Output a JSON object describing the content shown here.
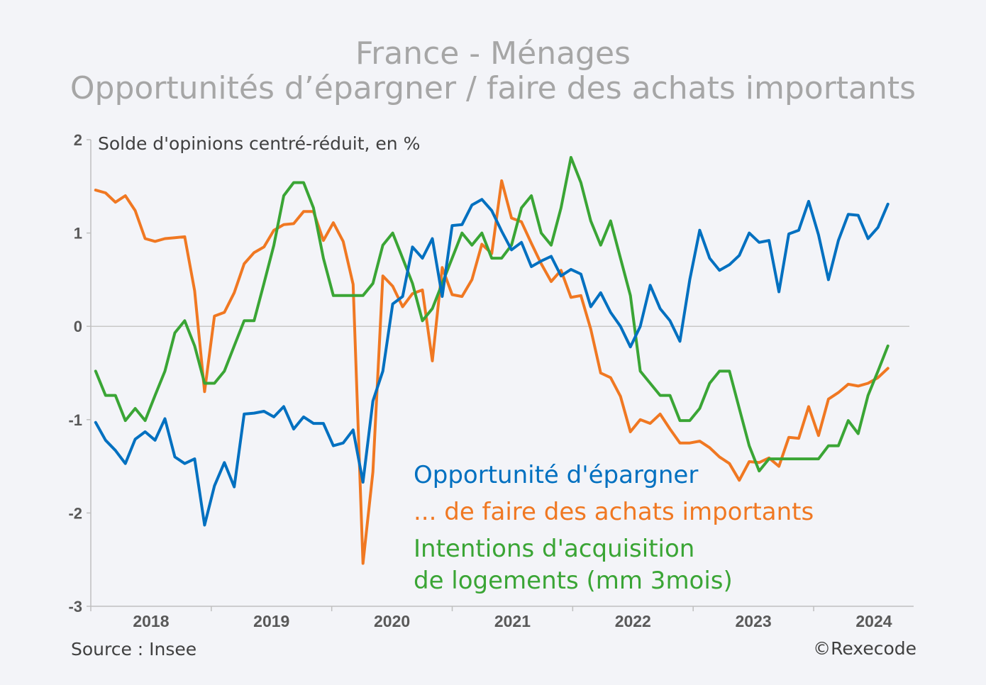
{
  "chart_data": {
    "type": "line",
    "title": "France - Ménages",
    "subtitle": "Opportunités d’épargner / faire des achats importants",
    "ylabel": "Solde d'opinions centré-réduit, en %",
    "ylim": [
      -3,
      2
    ],
    "yticks": [
      "2",
      "1",
      "0",
      "-1",
      "-2",
      "-3"
    ],
    "xlim": [
      2017.5,
      2024.33
    ],
    "xticks": [
      {
        "label": "2018",
        "value": 2018.0
      },
      {
        "label": "2019",
        "value": 2019.0
      },
      {
        "label": "2020",
        "value": 2020.0
      },
      {
        "label": "2021",
        "value": 2021.0
      },
      {
        "label": "2022",
        "value": 2022.0
      },
      {
        "label": "2023",
        "value": 2023.0
      },
      {
        "label": "2024",
        "value": 2024.0
      }
    ],
    "start": 2017.54,
    "step": 0.0822,
    "series": [
      {
        "name": "Opportunité d'épargner",
        "color": "#0070c0",
        "values": [
          -1.03,
          -1.22,
          -1.33,
          -1.47,
          -1.21,
          -1.13,
          -1.22,
          -0.99,
          -1.4,
          -1.47,
          -1.42,
          -2.13,
          -1.71,
          -1.46,
          -1.72,
          -0.94,
          -0.93,
          -0.91,
          -0.97,
          -0.86,
          -1.1,
          -0.97,
          -1.04,
          -1.04,
          -1.28,
          -1.25,
          -1.11,
          -1.67,
          -0.8,
          -0.48,
          0.24,
          0.32,
          0.85,
          0.73,
          0.94,
          0.32,
          1.08,
          1.09,
          1.3,
          1.36,
          1.24,
          1.02,
          0.82,
          0.9,
          0.64,
          0.7,
          0.75,
          0.54,
          0.61,
          0.56,
          0.21,
          0.36,
          0.15,
          0.0,
          -0.22,
          0.0,
          0.44,
          0.19,
          0.06,
          -0.16,
          0.5,
          1.03,
          0.73,
          0.6,
          0.66,
          0.76,
          1.0,
          0.9,
          0.92,
          0.37,
          0.99,
          1.03,
          1.34,
          0.98,
          0.5,
          0.92,
          1.2,
          1.19,
          0.94,
          1.06,
          1.31
        ]
      },
      {
        "name": "... de faire des achats importants",
        "color": "#f07822",
        "values": [
          1.46,
          1.43,
          1.33,
          1.4,
          1.24,
          0.94,
          0.91,
          0.94,
          0.95,
          0.96,
          0.38,
          -0.7,
          0.11,
          0.15,
          0.36,
          0.67,
          0.79,
          0.85,
          1.03,
          1.09,
          1.1,
          1.23,
          1.23,
          0.92,
          1.11,
          0.91,
          0.45,
          -2.54,
          -1.56,
          0.54,
          0.43,
          0.21,
          0.35,
          0.39,
          -0.37,
          0.63,
          0.34,
          0.32,
          0.5,
          0.88,
          0.78,
          1.56,
          1.16,
          1.12,
          0.89,
          0.67,
          0.48,
          0.6,
          0.31,
          0.33,
          -0.03,
          -0.5,
          -0.55,
          -0.75,
          -1.13,
          -1.0,
          -1.04,
          -0.94,
          -1.1,
          -1.25,
          -1.25,
          -1.23,
          -1.3,
          -1.4,
          -1.47,
          -1.65,
          -1.45,
          -1.46,
          -1.41,
          -1.5,
          -1.19,
          -1.2,
          -0.86,
          -1.17,
          -0.78,
          -0.71,
          -0.62,
          -0.64,
          -0.61,
          -0.55,
          -0.45
        ]
      },
      {
        "name": "Intentions d'acquisition de logements (mm 3mois)",
        "color": "#3aa535",
        "values": [
          -0.48,
          -0.74,
          -0.74,
          -1.01,
          -0.88,
          -1.01,
          -0.74,
          -0.48,
          -0.07,
          0.06,
          -0.21,
          -0.61,
          -0.61,
          -0.48,
          -0.21,
          0.06,
          0.06,
          0.46,
          0.87,
          1.4,
          1.54,
          1.54,
          1.27,
          0.73,
          0.33,
          0.33,
          0.33,
          0.33,
          0.46,
          0.87,
          1.0,
          0.73,
          0.46,
          0.06,
          0.19,
          0.46,
          0.73,
          1.0,
          0.87,
          1.0,
          0.73,
          0.73,
          0.87,
          1.27,
          1.4,
          1.0,
          0.87,
          1.27,
          1.81,
          1.54,
          1.13,
          0.87,
          1.13,
          0.73,
          0.33,
          -0.48,
          -0.61,
          -0.74,
          -0.74,
          -1.01,
          -1.01,
          -0.88,
          -0.61,
          -0.48,
          -0.48,
          -0.88,
          -1.28,
          -1.55,
          -1.42,
          -1.42,
          -1.42,
          -1.42,
          -1.42,
          -1.42,
          -1.28,
          -1.28,
          -1.01,
          -1.15,
          -0.74,
          -0.48,
          -0.21
        ]
      }
    ],
    "legend": {
      "line1": "Opportunité d'épargner",
      "line2": "... de faire des achats importants",
      "line3": "Intentions d'acquisition",
      "line4": "de logements (mm 3mois)"
    },
    "source": "Source : Insee",
    "copyright": "©Rexecode"
  }
}
